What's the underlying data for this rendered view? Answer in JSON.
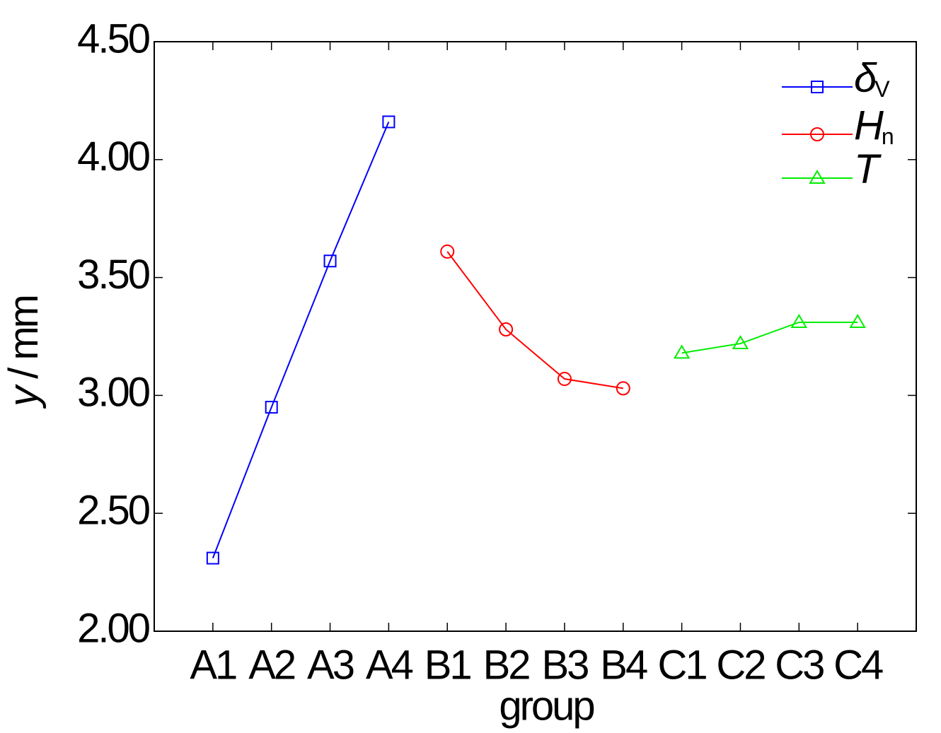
{
  "chart_data": {
    "type": "line",
    "x_label": "group",
    "y_label_var": "y",
    "y_label_unit": " / mm",
    "categories": [
      "A1",
      "A2",
      "A3",
      "A4",
      "B1",
      "B2",
      "B3",
      "B4",
      "C1",
      "C2",
      "C3",
      "C4"
    ],
    "series": [
      {
        "name": "δ",
        "name_sub": "V",
        "color": "#0000ff",
        "marker": "square",
        "values": [
          2.31,
          2.95,
          3.57,
          4.16,
          null,
          null,
          null,
          null,
          null,
          null,
          null,
          null
        ]
      },
      {
        "name": "H",
        "name_sub": "n",
        "color": "#ff0000",
        "marker": "circle",
        "values": [
          null,
          null,
          null,
          null,
          3.61,
          3.28,
          3.07,
          3.03,
          null,
          null,
          null,
          null
        ]
      },
      {
        "name": "T",
        "color": "#00ee00",
        "marker": "triangle",
        "values": [
          null,
          null,
          null,
          null,
          null,
          null,
          null,
          null,
          3.18,
          3.22,
          3.31,
          3.31
        ]
      }
    ],
    "ylim": [
      2.0,
      4.5
    ],
    "yticks": [
      {
        "value": 2.0,
        "label": "2.00"
      },
      {
        "value": 2.5,
        "label": "2.50"
      },
      {
        "value": 3.0,
        "label": "3.00"
      },
      {
        "value": 3.5,
        "label": "3.50"
      },
      {
        "value": 4.0,
        "label": "4.00"
      },
      {
        "value": 4.5,
        "label": "4.50"
      }
    ],
    "legend": "upper right"
  }
}
